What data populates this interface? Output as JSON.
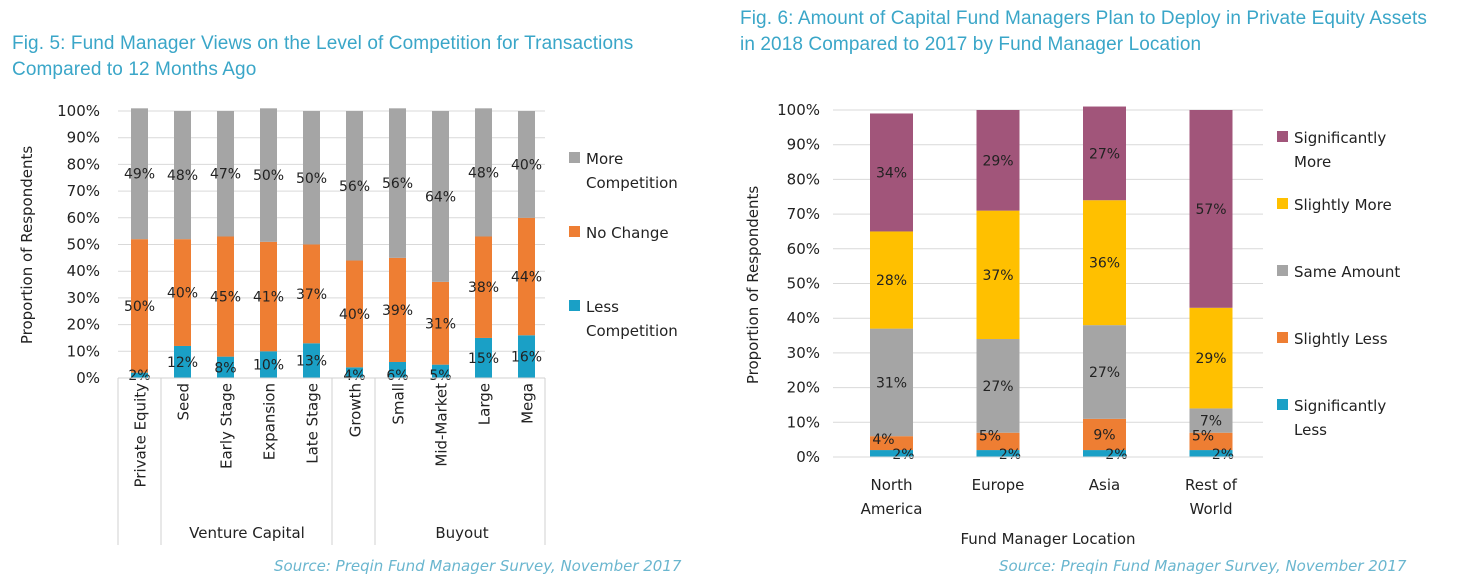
{
  "chart_data": [
    {
      "id": "fig5",
      "type": "bar",
      "stacked": true,
      "title": "Fig. 5: Fund Manager Views on the Level of Competition for Transactions Compared to 12 Months Ago",
      "ylabel": "Proportion of Respondents",
      "xlabel": "",
      "ylim": [
        0,
        100
      ],
      "yticks": [
        "0%",
        "10%",
        "20%",
        "30%",
        "40%",
        "50%",
        "60%",
        "70%",
        "80%",
        "90%",
        "100%"
      ],
      "grid": true,
      "legend_position": "right",
      "categories": [
        "Private Equity",
        "Seed",
        "Early Stage",
        "Expansion",
        "Late Stage",
        "Growth",
        "Small",
        "Mid-Market",
        "Large",
        "Mega"
      ],
      "category_groups": [
        {
          "label": "",
          "categories": [
            "Private Equity"
          ]
        },
        {
          "label": "Venture Capital",
          "categories": [
            "Seed",
            "Early Stage",
            "Expansion",
            "Late Stage"
          ]
        },
        {
          "label": "",
          "categories": [
            "Growth"
          ]
        },
        {
          "label": "Buyout",
          "categories": [
            "Small",
            "Mid-Market",
            "Large",
            "Mega"
          ]
        }
      ],
      "series": [
        {
          "name": "Less Competition",
          "color": "#1aa0c6",
          "values": [
            2,
            12,
            8,
            10,
            13,
            4,
            6,
            5,
            15,
            16
          ]
        },
        {
          "name": "No Change",
          "color": "#ee7e33",
          "values": [
            50,
            40,
            45,
            41,
            37,
            40,
            39,
            31,
            38,
            44
          ]
        },
        {
          "name": "More Competition",
          "color": "#a5a5a5",
          "values": [
            49,
            48,
            47,
            50,
            50,
            56,
            56,
            64,
            48,
            40
          ]
        }
      ],
      "legend_order": [
        "More Competition",
        "No Change",
        "Less Competition"
      ],
      "source": "Source: Preqin Fund Manager Survey, November 2017"
    },
    {
      "id": "fig6",
      "type": "bar",
      "stacked": true,
      "title": "Fig. 6: Amount of Capital Fund Managers Plan to Deploy in Private Equity Assets in 2018 Compared to 2017 by Fund Manager Location",
      "ylabel": "Proportion of Respondents",
      "xlabel": "Fund Manager Location",
      "ylim": [
        0,
        100
      ],
      "yticks": [
        "0%",
        "10%",
        "20%",
        "30%",
        "40%",
        "50%",
        "60%",
        "70%",
        "80%",
        "90%",
        "100%"
      ],
      "grid": true,
      "legend_position": "right",
      "categories": [
        "North America",
        "Europe",
        "Asia",
        "Rest of World"
      ],
      "series": [
        {
          "name": "Significantly Less",
          "color": "#1aa0c6",
          "values": [
            2,
            2,
            2,
            2
          ]
        },
        {
          "name": "Slightly Less",
          "color": "#ee7e33",
          "values": [
            4,
            5,
            9,
            5
          ]
        },
        {
          "name": "Same Amount",
          "color": "#a5a5a5",
          "values": [
            31,
            27,
            27,
            7
          ]
        },
        {
          "name": "Slightly More",
          "color": "#ffc000",
          "values": [
            28,
            37,
            36,
            29
          ]
        },
        {
          "name": "Significantly More",
          "color": "#a1557a",
          "values": [
            34,
            29,
            27,
            57
          ]
        }
      ],
      "legend_order": [
        "Significantly More",
        "Slightly More",
        "Same Amount",
        "Slightly Less",
        "Significantly Less"
      ],
      "source": "Source: Preqin Fund Manager Survey, November 2017"
    }
  ]
}
